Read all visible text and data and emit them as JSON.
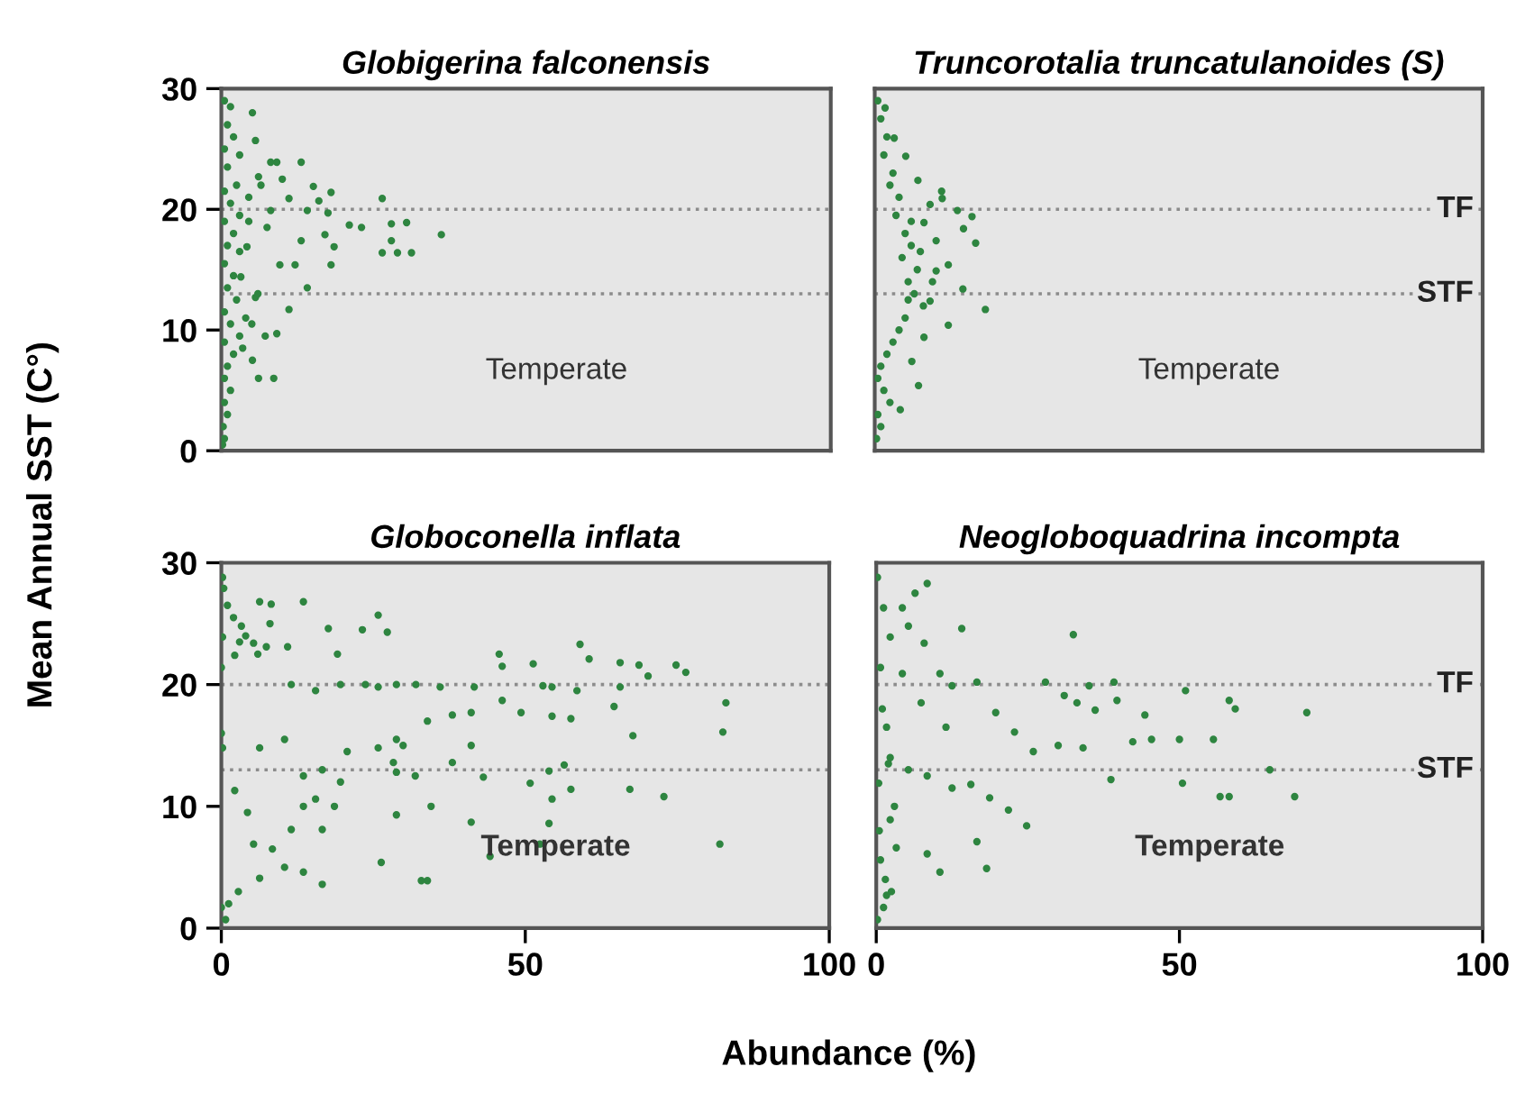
{
  "chart_data": [
    {
      "type": "scatter",
      "title": "Globigerina falconensis",
      "ylabel": "Mean Annual SST (C°)",
      "color": "#2e8540",
      "marker": "circle",
      "grid": false,
      "tick_labels": "y",
      "xlim": [
        0,
        100
      ],
      "ylim": [
        0,
        30
      ],
      "yticks": [
        0,
        10,
        20,
        30
      ],
      "ref_lines": [
        {
          "axis": "y",
          "value": 20,
          "color": "#8c8c8c",
          "line_style": "dotted"
        },
        {
          "axis": "y",
          "value": 13,
          "color": "#8c8c8c",
          "line_style": "dotted"
        }
      ],
      "annotations": [
        "Temperate"
      ],
      "x": [
        5.1,
        5.6,
        8.1,
        9.1,
        13.1,
        6.1,
        26.4,
        16.0,
        18.0,
        17.5,
        21.0,
        23.0,
        27.9,
        30.4,
        36.1,
        27.9,
        26.4,
        28.9,
        31.2,
        18.5,
        9.6,
        12.1,
        18.0,
        14.1,
        11.1,
        5.6,
        9.1,
        5.1,
        6.1,
        8.6,
        7.2,
        17.0,
        13.1,
        8.1,
        11.1,
        14.1,
        15.1,
        4.2,
        3.2,
        0.5,
        1.5,
        1.0,
        2.0,
        0.5,
        3.0,
        1.0,
        2.5,
        0.5,
        1.5,
        3.0,
        0.5,
        2.0,
        1.0,
        3.0,
        0.5,
        2.0,
        1.0,
        2.5,
        0.5,
        1.5,
        3.0,
        0.5,
        2.0,
        1.0,
        0.5,
        1.5,
        0.5,
        1.0,
        0.3,
        0.5,
        0.2,
        4.5,
        6.5,
        7.5,
        10.0,
        4.0,
        5.0,
        6.0,
        3.5,
        4.5
      ],
      "values": [
        28.0,
        25.7,
        23.9,
        23.9,
        23.9,
        22.7,
        20.9,
        20.7,
        21.4,
        19.7,
        18.7,
        18.5,
        18.8,
        18.9,
        17.9,
        17.4,
        16.4,
        16.4,
        16.4,
        16.9,
        15.4,
        15.4,
        15.4,
        13.5,
        11.7,
        12.7,
        9.7,
        7.5,
        6.0,
        6.0,
        9.5,
        17.9,
        17.4,
        19.9,
        20.9,
        19.9,
        21.9,
        16.9,
        14.4,
        29,
        28.5,
        27,
        26,
        25,
        24.5,
        23.5,
        22,
        21.5,
        20.5,
        19.5,
        19,
        18,
        17,
        16.5,
        15.5,
        14.5,
        13.5,
        12.5,
        11.5,
        10.5,
        9.5,
        9,
        8,
        7,
        6,
        5,
        4,
        3,
        2,
        1,
        0.5,
        21.0,
        22.0,
        18.5,
        22.5,
        11.0,
        10.5,
        13.0,
        8.5,
        19.0
      ]
    },
    {
      "type": "scatter",
      "title": "Truncorotalia truncatulanoides (S)",
      "color": "#2e8540",
      "marker": "circle",
      "grid": false,
      "tick_labels": false,
      "xlim": [
        0,
        100
      ],
      "ylim": [
        0,
        30
      ],
      "ref_lines": [
        {
          "axis": "y",
          "value": 20,
          "label": "TF",
          "color": "#8c8c8c",
          "line_style": "dotted"
        },
        {
          "axis": "y",
          "value": 13,
          "label": "STF",
          "color": "#8c8c8c",
          "line_style": "dotted"
        }
      ],
      "annotations": [
        "Temperate"
      ],
      "x": [
        13.6,
        16.0,
        14.6,
        16.6,
        14.5,
        18.2,
        12.1,
        10.1,
        11.1,
        7.1,
        5.1,
        3.2,
        1.7,
        9.1,
        12.1,
        8.1,
        6.1,
        7.2,
        4.2,
        10.1,
        8.1,
        9.1,
        0.5,
        1.0,
        2.0,
        1.5,
        3.0,
        2.5,
        4.0,
        3.5,
        5.0,
        6.0,
        4.5,
        7.0,
        5.5,
        6.5,
        8.0,
        5.0,
        4.0,
        3.0,
        2.0,
        1.0,
        0.5,
        1.5,
        2.5,
        0.5,
        1.0,
        0.3,
        6.0,
        7.5,
        9.5,
        11.0,
        5.5
      ],
      "values": [
        19.9,
        19.4,
        18.4,
        17.2,
        13.4,
        11.7,
        15.4,
        17.4,
        20.9,
        22.4,
        24.4,
        25.9,
        28.4,
        12.4,
        10.4,
        9.4,
        7.4,
        5.4,
        3.4,
        14.9,
        18.9,
        20.4,
        29,
        27.5,
        26,
        24.5,
        23,
        22,
        21,
        19.5,
        18,
        17,
        16,
        15,
        14,
        13,
        12,
        11,
        10,
        9,
        8,
        7,
        6,
        5,
        4,
        3,
        2,
        1,
        19,
        16.5,
        14,
        21.5,
        12.5
      ]
    },
    {
      "type": "scatter",
      "title": "Globoconella inflata",
      "xlabel": "Abundance (%)",
      "color": "#2e8540",
      "marker": "circle",
      "grid": false,
      "xlim": [
        0,
        100
      ],
      "ylim": [
        0,
        30
      ],
      "xticks": [
        0,
        50,
        100
      ],
      "yticks": [
        0,
        10,
        20,
        30
      ],
      "ref_lines": [
        {
          "axis": "y",
          "value": 20,
          "color": "#8c8c8c",
          "line_style": "dotted"
        },
        {
          "axis": "y",
          "value": 13,
          "color": "#8c8c8c",
          "line_style": "dotted"
        }
      ],
      "annotations": [
        "Temperate"
      ],
      "x": [
        13.5,
        6.3,
        8.2,
        25.8,
        17.6,
        23.2,
        27.3,
        3.3,
        5.3,
        7.4,
        2.2,
        19.1,
        10.9,
        45.7,
        59.0,
        60.5,
        46.2,
        51.3,
        65.6,
        68.7,
        74.8,
        76.4,
        70.2,
        11.5,
        15.5,
        19.6,
        23.7,
        25.8,
        28.8,
        32.0,
        36.0,
        41.6,
        52.9,
        54.4,
        58.5,
        65.6,
        83.0,
        82.5,
        67.7,
        46.2,
        49.3,
        54.4,
        57.5,
        64.6,
        38.0,
        41.1,
        33.9,
        28.8,
        28.3,
        29.9,
        41.1,
        38.0,
        43.1,
        53.9,
        56.4,
        50.8,
        54.4,
        57.5,
        67.2,
        72.8,
        25.8,
        28.8,
        31.9,
        34.5,
        28.8,
        41.1,
        53.9,
        52.4,
        44.2,
        82.0,
        32.9,
        33.9,
        26.3,
        13.5,
        16.6,
        19.6,
        15.5,
        13.5,
        18.6,
        16.6,
        11.5,
        8.4,
        5.3,
        10.4,
        6.3,
        13.5,
        16.6,
        2.8,
        1.2,
        4.3,
        2.2,
        10.4,
        6.3,
        20.7,
        0.0,
        0.2,
        0.0,
        0.2,
        0.2,
        0.4,
        0.0,
        0.7,
        2.0,
        4.0,
        6.0,
        8.0,
        1.0,
        3.0
      ],
      "values": [
        26.8,
        26.8,
        26.6,
        25.7,
        24.6,
        24.5,
        24.3,
        24.8,
        23.4,
        23.1,
        22.4,
        22.5,
        23.1,
        22.5,
        23.3,
        22.1,
        21.5,
        21.7,
        21.8,
        21.6,
        21.6,
        21.0,
        20.7,
        20.0,
        19.5,
        20.0,
        20.0,
        19.8,
        20.0,
        20.0,
        19.8,
        19.8,
        19.9,
        19.8,
        19.5,
        19.8,
        18.5,
        16.1,
        15.8,
        18.7,
        17.7,
        17.4,
        17.2,
        18.2,
        17.5,
        17.7,
        17.0,
        15.5,
        13.6,
        15.0,
        15.0,
        13.6,
        12.4,
        12.9,
        13.4,
        11.9,
        10.6,
        11.4,
        11.4,
        10.8,
        14.8,
        12.8,
        12.5,
        10.0,
        9.3,
        8.7,
        8.6,
        6.9,
        5.9,
        6.9,
        3.9,
        3.9,
        5.4,
        12.5,
        13.0,
        12.0,
        10.6,
        10.0,
        10.0,
        8.1,
        8.1,
        6.5,
        6.9,
        5.0,
        4.1,
        4.6,
        3.6,
        3.0,
        2.0,
        9.5,
        11.3,
        15.5,
        14.8,
        14.5,
        16.0,
        14.8,
        21.4,
        23.9,
        28.8,
        27.9,
        1.7,
        0.7,
        25.5,
        24.0,
        22.5,
        25.0,
        26.5,
        23.5
      ]
    },
    {
      "type": "scatter",
      "title": "Neogloboquadrina incompta",
      "color": "#2e8540",
      "marker": "circle",
      "grid": false,
      "tick_labels": "x",
      "xlim": [
        0,
        100
      ],
      "ylim": [
        0,
        30
      ],
      "xticks": [
        0,
        50,
        100
      ],
      "ref_lines": [
        {
          "axis": "y",
          "value": 20,
          "label": "TF",
          "color": "#8c8c8c",
          "line_style": "dotted"
        },
        {
          "axis": "y",
          "value": 13,
          "label": "STF",
          "color": "#8c8c8c",
          "line_style": "dotted"
        }
      ],
      "annotations": [
        "Temperate"
      ],
      "x": [
        32.5,
        71.0,
        59.2,
        58.2,
        51.0,
        55.6,
        50.0,
        45.4,
        42.3,
        44.3,
        39.7,
        39.2,
        35.1,
        36.1,
        33.1,
        31.0,
        27.9,
        64.9,
        69.0,
        58.2,
        56.7,
        50.5,
        38.7,
        34.1,
        30.0,
        25.9,
        24.8,
        21.8,
        18.7,
        15.6,
        22.8,
        19.7,
        16.6,
        14.1,
        7.9,
        8.4,
        6.4,
        16.6,
        18.2,
        10.5,
        8.4,
        4.3,
        10.5,
        12.5,
        7.4,
        11.5,
        2.3,
        5.3,
        8.4,
        12.5,
        1.7,
        2.3,
        3.3,
        1.7,
        1.2,
        0.2,
        1.2,
        2.3,
        0.7,
        0.4,
        0.7,
        0.2,
        4.3,
        5.3,
        1.0,
        2.0,
        3.0,
        0.5,
        1.5,
        2.5
      ],
      "values": [
        24.1,
        17.7,
        18.0,
        18.7,
        19.5,
        15.5,
        15.5,
        15.5,
        15.3,
        17.5,
        18.7,
        20.2,
        19.9,
        17.9,
        18.5,
        19.1,
        20.2,
        13.0,
        10.8,
        10.8,
        10.8,
        11.9,
        12.2,
        14.8,
        15.0,
        14.5,
        8.4,
        9.7,
        10.7,
        11.8,
        16.1,
        17.7,
        20.2,
        24.6,
        23.4,
        28.3,
        27.5,
        7.1,
        4.9,
        4.6,
        6.1,
        20.9,
        20.9,
        19.9,
        18.5,
        16.5,
        14.0,
        13.0,
        12.5,
        11.5,
        16.5,
        8.9,
        6.6,
        2.7,
        1.7,
        28.8,
        26.3,
        23.9,
        21.4,
        11.9,
        5.6,
        0.7,
        26.3,
        24.8,
        18.0,
        13.5,
        10.0,
        8.0,
        4.0,
        3.0
      ]
    }
  ]
}
